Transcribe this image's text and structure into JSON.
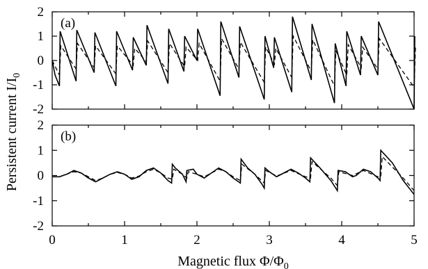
{
  "chart_data": {
    "type": "line",
    "ylabel": "Persistent current I/I",
    "ylabel_sub": "0",
    "xlabel": "Magnetic flux Φ/Φ",
    "xlabel_sub": "0",
    "shared_x_ticks": [
      "0",
      "1",
      "2",
      "3",
      "4",
      "5"
    ],
    "panels": [
      {
        "label": "(a)",
        "xlim": [
          0,
          5
        ],
        "ylim": [
          -2,
          2
        ],
        "y_ticks": [
          "-2",
          "-1",
          "0",
          "1",
          "2"
        ],
        "series": [
          {
            "style": "solid",
            "points": [
              [
                0,
                0
              ],
              [
                0.04,
                -0.6
              ],
              [
                0.1,
                -1.05
              ],
              [
                0.11,
                1.2
              ],
              [
                0.33,
                -0.85
              ],
              [
                0.34,
                1.25
              ],
              [
                0.58,
                -0.5
              ],
              [
                0.59,
                1.15
              ],
              [
                0.88,
                -1.05
              ],
              [
                0.89,
                1.2
              ],
              [
                1.11,
                -0.4
              ],
              [
                1.12,
                0.95
              ],
              [
                1.3,
                -0.2
              ],
              [
                1.31,
                1.45
              ],
              [
                1.6,
                -0.95
              ],
              [
                1.61,
                1.3
              ],
              [
                1.82,
                -0.45
              ],
              [
                1.83,
                1.0
              ],
              [
                2.0,
                0.0
              ],
              [
                2.01,
                1.3
              ],
              [
                2.32,
                -1.45
              ],
              [
                2.33,
                1.6
              ],
              [
                2.58,
                -0.7
              ],
              [
                2.59,
                1.4
              ],
              [
                2.93,
                -1.6
              ],
              [
                2.94,
                1.0
              ],
              [
                3.06,
                -0.3
              ],
              [
                3.07,
                0.95
              ],
              [
                3.31,
                -1.3
              ],
              [
                3.32,
                1.8
              ],
              [
                3.58,
                -0.8
              ],
              [
                3.59,
                1.5
              ],
              [
                3.9,
                -1.75
              ],
              [
                3.91,
                0.7
              ],
              [
                4.06,
                -1.05
              ],
              [
                4.07,
                1.2
              ],
              [
                4.26,
                -0.6
              ],
              [
                4.27,
                1.0
              ],
              [
                4.5,
                -0.6
              ],
              [
                4.51,
                1.6
              ],
              [
                5.0,
                -2.0
              ],
              [
                5.01,
                1.0
              ]
            ]
          },
          {
            "style": "dashed",
            "points": [
              [
                0,
                0
              ],
              [
                0.1,
                -0.6
              ],
              [
                0.12,
                0.6
              ],
              [
                0.33,
                -0.35
              ],
              [
                0.35,
                0.7
              ],
              [
                0.58,
                -0.3
              ],
              [
                0.6,
                0.6
              ],
              [
                0.88,
                -0.55
              ],
              [
                0.9,
                0.6
              ],
              [
                1.12,
                -0.2
              ],
              [
                1.14,
                0.5
              ],
              [
                1.3,
                -0.05
              ],
              [
                1.32,
                0.8
              ],
              [
                1.6,
                -0.5
              ],
              [
                1.62,
                0.7
              ],
              [
                1.83,
                -0.25
              ],
              [
                1.85,
                0.55
              ],
              [
                2.01,
                0.0
              ],
              [
                2.03,
                0.7
              ],
              [
                2.32,
                -0.85
              ],
              [
                2.34,
                0.9
              ],
              [
                2.58,
                -0.35
              ],
              [
                2.6,
                0.75
              ],
              [
                2.93,
                -0.9
              ],
              [
                2.95,
                0.55
              ],
              [
                3.07,
                -0.15
              ],
              [
                3.09,
                0.5
              ],
              [
                3.31,
                -0.7
              ],
              [
                3.33,
                1.0
              ],
              [
                3.58,
                -0.45
              ],
              [
                3.6,
                0.85
              ],
              [
                3.9,
                -1.05
              ],
              [
                3.92,
                0.4
              ],
              [
                4.07,
                -0.6
              ],
              [
                4.09,
                0.65
              ],
              [
                4.27,
                -0.3
              ],
              [
                4.29,
                0.55
              ],
              [
                4.5,
                -0.35
              ],
              [
                4.52,
                0.9
              ],
              [
                5.0,
                -1.1
              ],
              [
                5.02,
                0.6
              ]
            ]
          }
        ]
      },
      {
        "label": "(b)",
        "xlim": [
          0,
          5
        ],
        "ylim": [
          -2,
          2
        ],
        "y_ticks": [
          "-2",
          "-1",
          "0",
          "1",
          "2"
        ],
        "series": [
          {
            "style": "solid",
            "points": [
              [
                0,
                -0.05
              ],
              [
                0.1,
                -0.05
              ],
              [
                0.2,
                0.05
              ],
              [
                0.3,
                0.2
              ],
              [
                0.4,
                0.1
              ],
              [
                0.5,
                -0.1
              ],
              [
                0.6,
                -0.25
              ],
              [
                0.7,
                -0.1
              ],
              [
                0.8,
                0.05
              ],
              [
                0.9,
                0.15
              ],
              [
                1.0,
                0.05
              ],
              [
                1.1,
                -0.15
              ],
              [
                1.2,
                -0.05
              ],
              [
                1.3,
                0.2
              ],
              [
                1.4,
                0.3
              ],
              [
                1.5,
                0.1
              ],
              [
                1.6,
                -0.2
              ],
              [
                1.65,
                -0.3
              ],
              [
                1.66,
                0.45
              ],
              [
                1.7,
                0.3
              ],
              [
                1.8,
                0.05
              ],
              [
                1.85,
                -0.25
              ],
              [
                1.86,
                0.2
              ],
              [
                1.95,
                0.25
              ],
              [
                2.0,
                0.05
              ],
              [
                2.1,
                -0.1
              ],
              [
                2.2,
                0.1
              ],
              [
                2.3,
                0.3
              ],
              [
                2.4,
                0.15
              ],
              [
                2.5,
                -0.1
              ],
              [
                2.6,
                -0.3
              ],
              [
                2.61,
                0.65
              ],
              [
                2.7,
                0.3
              ],
              [
                2.8,
                0.05
              ],
              [
                2.9,
                -0.35
              ],
              [
                2.93,
                -0.5
              ],
              [
                2.94,
                0.3
              ],
              [
                3.0,
                0.15
              ],
              [
                3.1,
                -0.05
              ],
              [
                3.2,
                0.1
              ],
              [
                3.3,
                0.25
              ],
              [
                3.4,
                0.1
              ],
              [
                3.5,
                -0.1
              ],
              [
                3.56,
                -0.25
              ],
              [
                3.57,
                0.7
              ],
              [
                3.7,
                0.3
              ],
              [
                3.85,
                -0.2
              ],
              [
                3.94,
                -0.6
              ],
              [
                3.95,
                0.2
              ],
              [
                4.05,
                0.15
              ],
              [
                4.15,
                -0.05
              ],
              [
                4.2,
                0.0
              ],
              [
                4.3,
                0.25
              ],
              [
                4.4,
                0.15
              ],
              [
                4.5,
                -0.1
              ],
              [
                4.53,
                -0.2
              ],
              [
                4.54,
                1.0
              ],
              [
                4.7,
                0.5
              ],
              [
                4.85,
                -0.2
              ],
              [
                5.0,
                -0.75
              ]
            ]
          },
          {
            "style": "dashed",
            "points": [
              [
                0,
                -0.05
              ],
              [
                0.1,
                -0.05
              ],
              [
                0.2,
                0.05
              ],
              [
                0.3,
                0.15
              ],
              [
                0.4,
                0.1
              ],
              [
                0.5,
                -0.05
              ],
              [
                0.6,
                -0.2
              ],
              [
                0.7,
                -0.1
              ],
              [
                0.8,
                0.05
              ],
              [
                0.9,
                0.12
              ],
              [
                1.0,
                0.05
              ],
              [
                1.1,
                -0.1
              ],
              [
                1.2,
                -0.02
              ],
              [
                1.3,
                0.15
              ],
              [
                1.4,
                0.25
              ],
              [
                1.5,
                0.1
              ],
              [
                1.6,
                -0.1
              ],
              [
                1.66,
                -0.15
              ],
              [
                1.68,
                0.25
              ],
              [
                1.8,
                0.05
              ],
              [
                1.86,
                -0.1
              ],
              [
                1.88,
                0.15
              ],
              [
                2.0,
                0.05
              ],
              [
                2.1,
                -0.05
              ],
              [
                2.2,
                0.1
              ],
              [
                2.3,
                0.25
              ],
              [
                2.4,
                0.15
              ],
              [
                2.5,
                -0.05
              ],
              [
                2.6,
                -0.2
              ],
              [
                2.62,
                0.45
              ],
              [
                2.8,
                0.05
              ],
              [
                2.93,
                -0.3
              ],
              [
                2.95,
                0.2
              ],
              [
                3.1,
                -0.02
              ],
              [
                3.3,
                0.2
              ],
              [
                3.5,
                -0.05
              ],
              [
                3.57,
                -0.1
              ],
              [
                3.59,
                0.55
              ],
              [
                3.85,
                -0.1
              ],
              [
                3.94,
                -0.4
              ],
              [
                3.96,
                0.15
              ],
              [
                4.15,
                0.0
              ],
              [
                4.3,
                0.2
              ],
              [
                4.5,
                -0.05
              ],
              [
                4.54,
                -0.05
              ],
              [
                4.56,
                0.75
              ],
              [
                4.85,
                -0.1
              ],
              [
                5.0,
                -0.6
              ]
            ]
          }
        ]
      }
    ]
  }
}
